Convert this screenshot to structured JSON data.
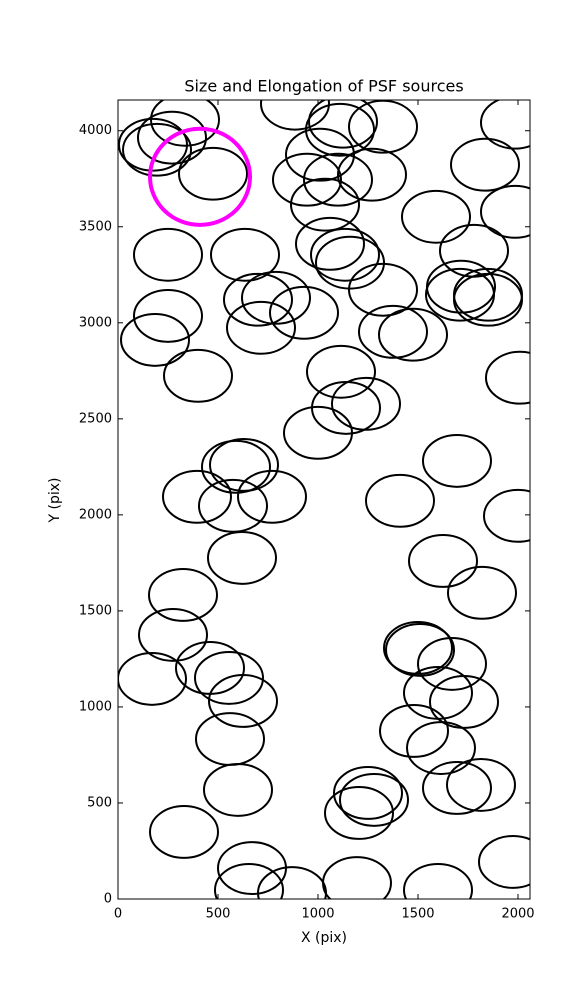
{
  "chart_data": {
    "type": "ellipse-scatter",
    "title": "Size and Elongation of PSF sources",
    "x_label": "X (pix)",
    "y_label": "Y (pix)",
    "xlim": [
      0,
      2060
    ],
    "ylim": [
      0,
      4160
    ],
    "xticks": [
      0,
      500,
      1000,
      1500,
      2000
    ],
    "yticks": [
      0,
      500,
      1000,
      1500,
      2000,
      2500,
      3000,
      3500,
      4000
    ],
    "color": "#000000",
    "marker_width": 340,
    "marker_height": 270,
    "x": [
      335,
      270,
      175,
      195,
      475,
      885,
      1125,
      1110,
      1325,
      1010,
      945,
      1100,
      1270,
      1035,
      1835,
      1985,
      1985,
      1590,
      1780,
      250,
      635,
      1060,
      1135,
      1160,
      1325,
      1715,
      1710,
      1850,
      1850,
      700,
      790,
      930,
      715,
      250,
      185,
      1375,
      1475,
      400,
      1115,
      2010,
      1140,
      1240,
      1000,
      1695,
      590,
      630,
      395,
      575,
      770,
      1410,
      2000,
      620,
      1625,
      1820,
      325,
      275,
      1500,
      1510,
      1670,
      460,
      170,
      555,
      625,
      1600,
      1730,
      560,
      1480,
      1615,
      1695,
      1815,
      600,
      1250,
      1280,
      1205,
      330,
      670,
      655,
      870,
      1195,
      1600,
      1975
    ],
    "values": [
      4057,
      3964,
      3927,
      3901,
      3776,
      4141,
      4047,
      4005,
      4021,
      3875,
      3745,
      3745,
      3771,
      3615,
      3823,
      4042,
      3578,
      3552,
      3375,
      3354,
      3354,
      3411,
      3354,
      3313,
      3172,
      3188,
      3146,
      3146,
      3120,
      3120,
      3130,
      3052,
      2974,
      3036,
      2911,
      2953,
      2938,
      2724,
      2745,
      2714,
      2557,
      2578,
      2427,
      2281,
      2250,
      2260,
      2094,
      2047,
      2094,
      2073,
      1995,
      1776,
      1760,
      1594,
      1583,
      1375,
      1307,
      1297,
      1224,
      1203,
      1146,
      1151,
      1031,
      1073,
      1026,
      833,
      875,
      786,
      578,
      594,
      568,
      552,
      516,
      448,
      349,
      161,
      47,
      31,
      83,
      47,
      193
    ],
    "highlight": {
      "x": 410,
      "y": 3760,
      "radius": 250,
      "color": "#ff00ff"
    }
  }
}
